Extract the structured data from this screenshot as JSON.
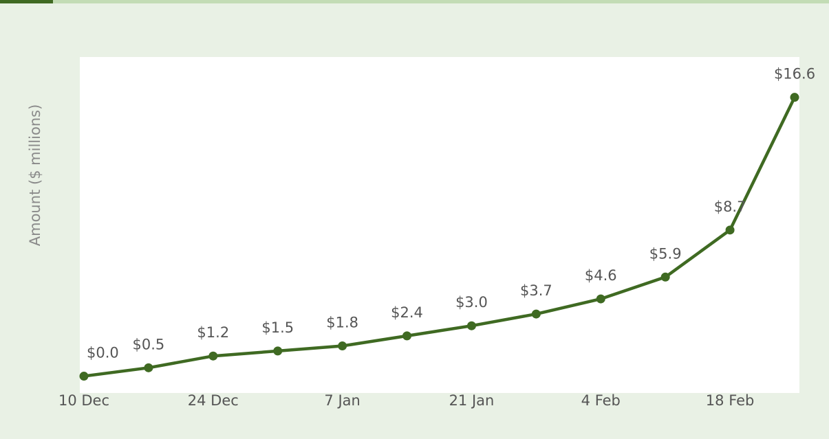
{
  "chart_data": {
    "type": "line",
    "y_label": "Amount ($ millions)",
    "categories": [
      "10 Dec",
      null,
      "24 Dec",
      null,
      "7 Jan",
      null,
      "21 Jan",
      null,
      "4 Feb",
      null,
      "18 Feb",
      null
    ],
    "series": [
      {
        "name": "Amount",
        "color": "#3f6a22",
        "values": [
          0.0,
          0.5,
          1.2,
          1.5,
          1.8,
          2.4,
          3.0,
          3.7,
          4.6,
          5.9,
          8.7,
          16.6
        ],
        "value_labels": [
          "$0.0",
          "$0.5",
          "$1.2",
          "$1.5",
          "$1.8",
          "$2.4",
          "$3.0",
          "$3.7",
          "$4.6",
          "$5.9",
          "$8.7",
          "$16.6"
        ]
      }
    ],
    "ylim": [
      -1,
      19
    ]
  }
}
